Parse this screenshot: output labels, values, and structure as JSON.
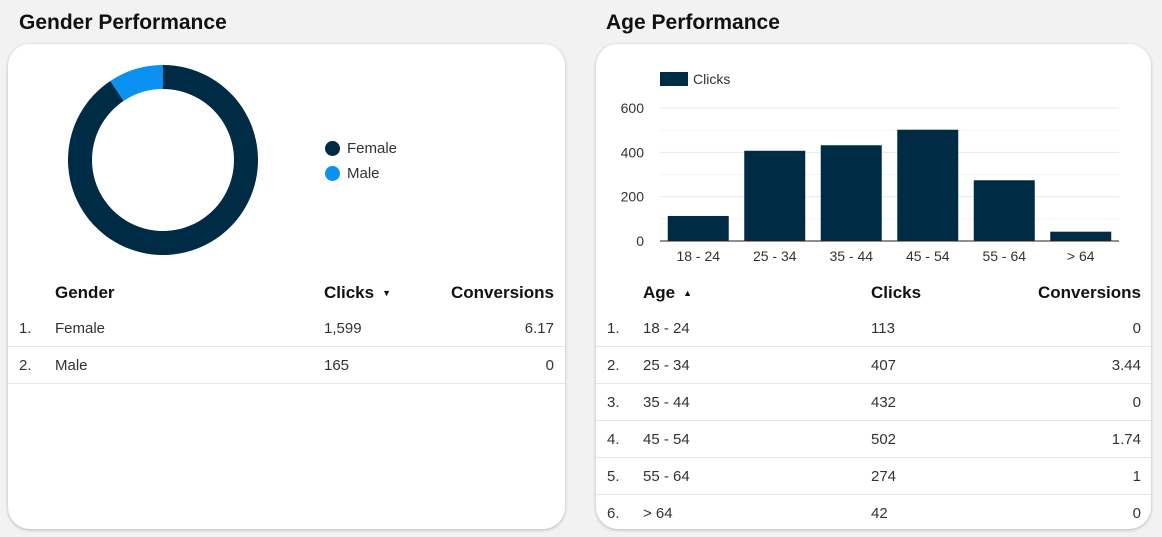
{
  "gender": {
    "title": "Gender Performance",
    "legend": [
      {
        "label": "Female",
        "color": "#002b45"
      },
      {
        "label": "Male",
        "color": "#0a91f2"
      }
    ],
    "table": {
      "headers": {
        "dimension": "Gender",
        "clicks": "Clicks",
        "conversions": "Conversions"
      },
      "rows": [
        {
          "idx": "1.",
          "label": "Female",
          "clicks": "1,599",
          "conversions": "6.17"
        },
        {
          "idx": "2.",
          "label": "Male",
          "clicks": "165",
          "conversions": "0"
        }
      ]
    }
  },
  "age": {
    "title": "Age Performance",
    "table": {
      "headers": {
        "dimension": "Age",
        "clicks": "Clicks",
        "conversions": "Conversions"
      },
      "rows": [
        {
          "idx": "1.",
          "label": "18 - 24",
          "clicks": "113",
          "conversions": "0"
        },
        {
          "idx": "2.",
          "label": "25 - 34",
          "clicks": "407",
          "conversions": "3.44"
        },
        {
          "idx": "3.",
          "label": "35 - 44",
          "clicks": "432",
          "conversions": "0"
        },
        {
          "idx": "4.",
          "label": "45 - 54",
          "clicks": "502",
          "conversions": "1.74"
        },
        {
          "idx": "5.",
          "label": "55 - 64",
          "clicks": "274",
          "conversions": "1"
        },
        {
          "idx": "6.",
          "label": "> 64",
          "clicks": "42",
          "conversions": "0"
        }
      ]
    }
  },
  "chart_data": [
    {
      "type": "pie",
      "donut": true,
      "categories": [
        "Female",
        "Male"
      ],
      "values": [
        1599,
        165
      ],
      "colors": [
        "#002b45",
        "#0a91f2"
      ],
      "legend_position": "right"
    },
    {
      "type": "bar",
      "categories": [
        "18 - 24",
        "25 - 34",
        "35 - 44",
        "45 - 54",
        "55 - 64",
        "> 64"
      ],
      "series": [
        {
          "name": "Clicks",
          "values": [
            113,
            407,
            432,
            502,
            274,
            42
          ],
          "color": "#002b45"
        }
      ],
      "ylim": [
        0,
        600
      ],
      "yticks": [
        0,
        200,
        400,
        600
      ],
      "grid": true,
      "legend_position": "top-left"
    }
  ]
}
